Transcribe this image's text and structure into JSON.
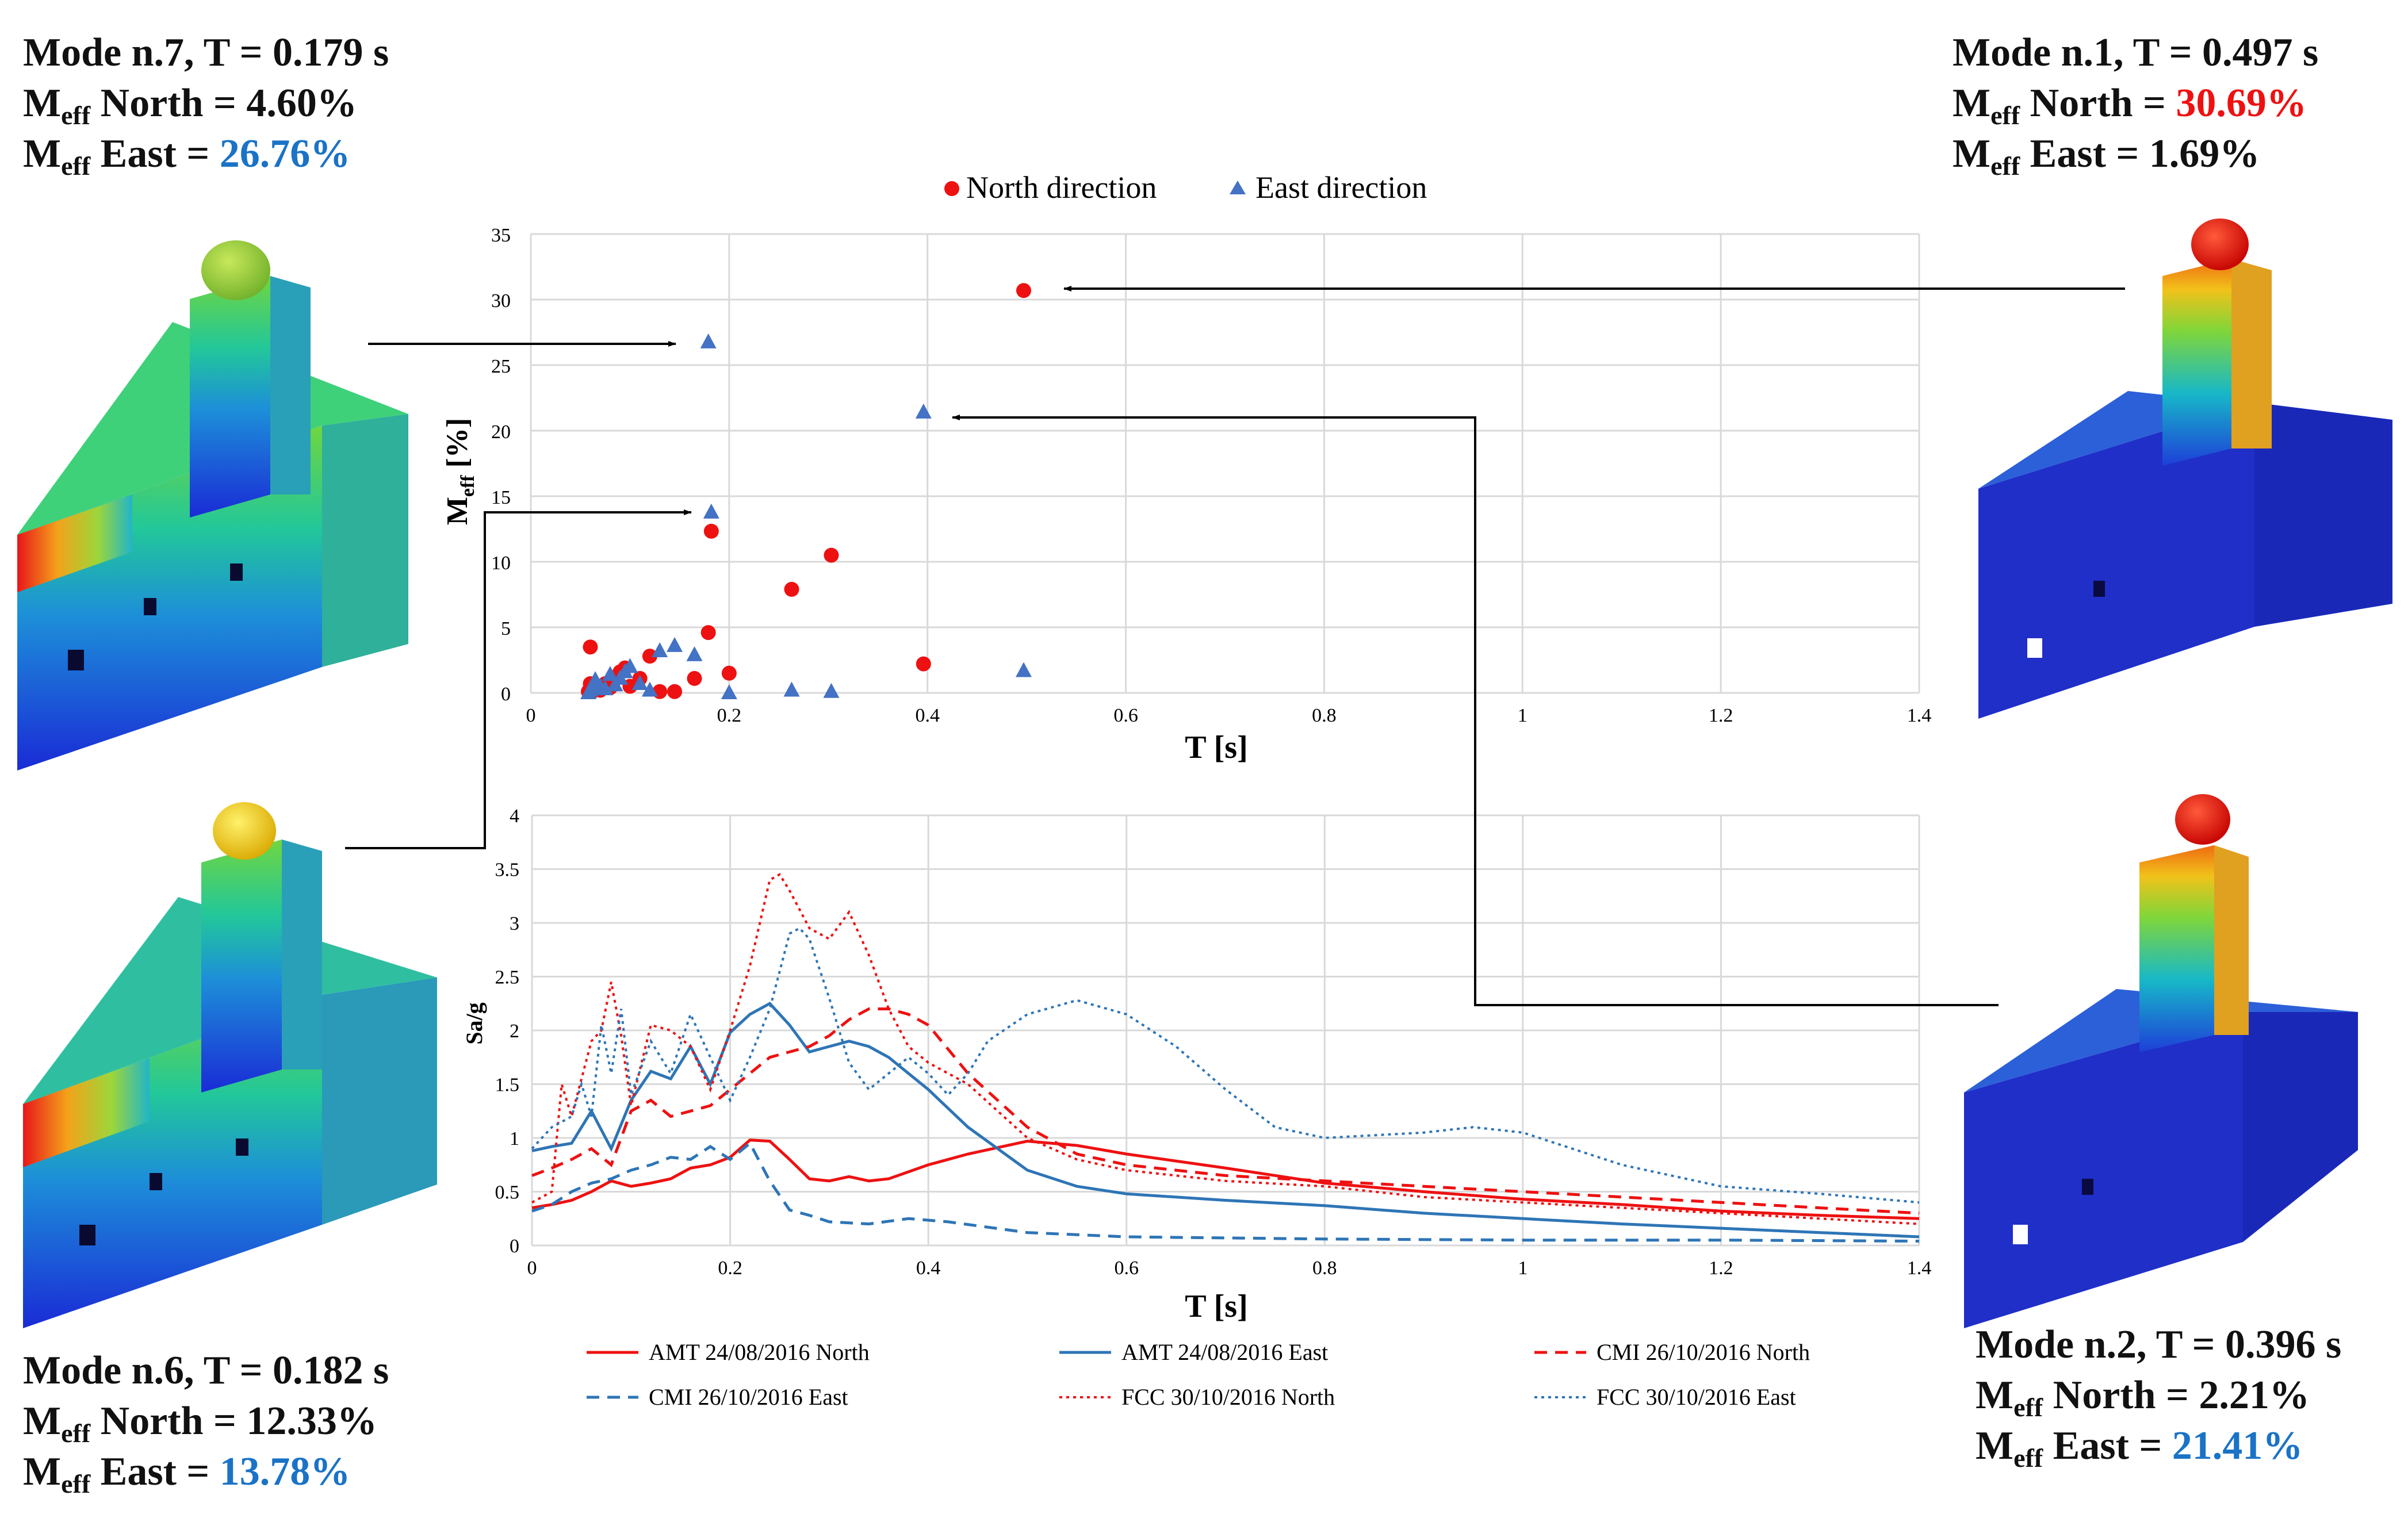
{
  "colors": {
    "north": "#ee1111",
    "east": "#4472c4",
    "east_line": "#2e75b6",
    "highlight_blue": "#1a73c6",
    "grid": "#d9d9d9",
    "arrow": "#000000"
  },
  "modes": [
    {
      "id": "mode7",
      "title": "Mode n.7, T = 0.179 s",
      "meff_label": "M",
      "eff_sub": "eff",
      "north_label": "North = ",
      "north_value": "4.60%",
      "north_color": "default",
      "east_label": "East = ",
      "east_value": "26.76%",
      "east_color": "blue"
    },
    {
      "id": "mode1",
      "title": "Mode n.1, T = 0.497 s",
      "meff_label": "M",
      "eff_sub": "eff",
      "north_label": "North = ",
      "north_value": "30.69%",
      "north_color": "red",
      "east_label": "East = ",
      "east_value": "1.69%",
      "east_color": "default"
    },
    {
      "id": "mode6",
      "title": "Mode n.6, T = 0.182 s",
      "meff_label": "M",
      "eff_sub": "eff",
      "north_label": "North = ",
      "north_value": "12.33%",
      "north_color": "default",
      "east_label": "East = ",
      "east_value": "13.78%",
      "east_color": "blue"
    },
    {
      "id": "mode2",
      "title": "Mode n.2, T = 0.396 s",
      "meff_label": "M",
      "eff_sub": "eff",
      "north_label": "North = ",
      "north_value": "2.21%",
      "north_color": "default",
      "east_label": "East = ",
      "east_value": "21.41%",
      "east_color": "blue"
    }
  ],
  "chart_data": [
    {
      "type": "scatter",
      "title": "",
      "xlabel": "T [s]",
      "ylabel": "M",
      "ylabel_sub": "eff",
      "ylabel_unit": " [%]",
      "xlim": [
        0,
        1.4
      ],
      "ylim": [
        0,
        35
      ],
      "xticks": [
        0,
        0.2,
        0.4,
        0.6,
        0.8,
        1,
        1.2,
        1.4
      ],
      "xtick_labels": [
        "0",
        "0.2",
        "0.4",
        "0.6",
        "0.8",
        "1",
        "1.2",
        "1.4"
      ],
      "yticks": [
        0,
        5,
        10,
        15,
        20,
        25,
        30,
        35
      ],
      "ytick_labels": [
        "0",
        "5",
        "10",
        "15",
        "20",
        "25",
        "30",
        "35"
      ],
      "grid": true,
      "legend_position": "top",
      "series": [
        {
          "name": "North direction",
          "marker": "circle",
          "points": [
            [
              0.497,
              30.69
            ],
            [
              0.396,
              2.21
            ],
            [
              0.303,
              10.5
            ],
            [
              0.263,
              7.9
            ],
            [
              0.182,
              12.33
            ],
            [
              0.179,
              4.6
            ],
            [
              0.2,
              1.5
            ],
            [
              0.165,
              1.1
            ],
            [
              0.145,
              0.1
            ],
            [
              0.13,
              0.1
            ],
            [
              0.12,
              2.8
            ],
            [
              0.11,
              1.1
            ],
            [
              0.1,
              0.5
            ],
            [
              0.095,
              1.9
            ],
            [
              0.09,
              1.6
            ],
            [
              0.085,
              1.2
            ],
            [
              0.08,
              0.4
            ],
            [
              0.075,
              0.7
            ],
            [
              0.07,
              0.2
            ],
            [
              0.065,
              0.3
            ],
            [
              0.06,
              3.5
            ],
            [
              0.06,
              0.7
            ],
            [
              0.058,
              0.1
            ],
            [
              0.062,
              0.1
            ]
          ]
        },
        {
          "name": "East direction",
          "marker": "triangle",
          "points": [
            [
              0.179,
              26.76
            ],
            [
              0.396,
              21.41
            ],
            [
              0.182,
              13.78
            ],
            [
              0.497,
              1.69
            ],
            [
              0.303,
              0.1
            ],
            [
              0.263,
              0.2
            ],
            [
              0.2,
              0.0
            ],
            [
              0.165,
              2.9
            ],
            [
              0.145,
              3.6
            ],
            [
              0.13,
              3.2
            ],
            [
              0.12,
              0.2
            ],
            [
              0.11,
              0.7
            ],
            [
              0.1,
              2.0
            ],
            [
              0.095,
              1.6
            ],
            [
              0.09,
              1.1
            ],
            [
              0.085,
              0.6
            ],
            [
              0.08,
              1.4
            ],
            [
              0.075,
              0.3
            ],
            [
              0.07,
              0.5
            ],
            [
              0.065,
              1.0
            ],
            [
              0.06,
              0.2
            ],
            [
              0.058,
              0.0
            ],
            [
              0.062,
              0.4
            ]
          ]
        }
      ]
    },
    {
      "type": "line",
      "title": "",
      "xlabel": "T [s]",
      "ylabel": "Sa/g",
      "xlim": [
        0,
        1.4
      ],
      "ylim": [
        0,
        4
      ],
      "xticks": [
        0,
        0.2,
        0.4,
        0.6,
        0.8,
        1,
        1.2,
        1.4
      ],
      "xtick_labels": [
        "0",
        "0.2",
        "0.4",
        "0.6",
        "0.8",
        "1",
        "1.2",
        "1.4"
      ],
      "yticks": [
        0,
        0.5,
        1,
        1.5,
        2,
        2.5,
        3,
        3.5,
        4
      ],
      "ytick_labels": [
        "0",
        "0.5",
        "1",
        "1.5",
        "2",
        "2.5",
        "3",
        "3.5",
        "4"
      ],
      "grid": true,
      "legend_position": "bottom",
      "series": [
        {
          "name": "AMT 24/08/2016 North",
          "color": "north",
          "dash": "solid",
          "x": [
            0,
            0.02,
            0.04,
            0.06,
            0.08,
            0.1,
            0.12,
            0.14,
            0.16,
            0.18,
            0.2,
            0.22,
            0.24,
            0.26,
            0.28,
            0.3,
            0.32,
            0.34,
            0.36,
            0.4,
            0.44,
            0.5,
            0.55,
            0.6,
            0.7,
            0.8,
            0.9,
            1.0,
            1.1,
            1.2,
            1.3,
            1.4
          ],
          "y": [
            0.35,
            0.38,
            0.42,
            0.5,
            0.6,
            0.55,
            0.58,
            0.62,
            0.72,
            0.75,
            0.82,
            0.98,
            0.97,
            0.8,
            0.62,
            0.6,
            0.64,
            0.6,
            0.62,
            0.75,
            0.85,
            0.97,
            0.93,
            0.85,
            0.72,
            0.58,
            0.5,
            0.43,
            0.38,
            0.32,
            0.28,
            0.25
          ]
        },
        {
          "name": "AMT 24/08/2016 East",
          "color": "east_line",
          "dash": "solid",
          "x": [
            0,
            0.02,
            0.04,
            0.06,
            0.08,
            0.1,
            0.12,
            0.14,
            0.16,
            0.18,
            0.2,
            0.22,
            0.24,
            0.26,
            0.28,
            0.3,
            0.32,
            0.34,
            0.36,
            0.4,
            0.44,
            0.5,
            0.55,
            0.6,
            0.7,
            0.8,
            0.9,
            1.0,
            1.1,
            1.2,
            1.3,
            1.4
          ],
          "y": [
            0.88,
            0.92,
            0.95,
            1.25,
            0.9,
            1.35,
            1.62,
            1.55,
            1.85,
            1.5,
            1.98,
            2.15,
            2.25,
            2.05,
            1.8,
            1.85,
            1.9,
            1.85,
            1.75,
            1.45,
            1.1,
            0.7,
            0.55,
            0.48,
            0.42,
            0.37,
            0.3,
            0.25,
            0.2,
            0.16,
            0.12,
            0.08
          ]
        },
        {
          "name": "CMI 26/10/2016 North",
          "color": "north",
          "dash": "dashed",
          "x": [
            0,
            0.02,
            0.04,
            0.06,
            0.08,
            0.1,
            0.12,
            0.14,
            0.16,
            0.18,
            0.2,
            0.22,
            0.24,
            0.26,
            0.28,
            0.3,
            0.32,
            0.34,
            0.36,
            0.38,
            0.4,
            0.44,
            0.5,
            0.55,
            0.6,
            0.7,
            0.8,
            0.9,
            1.0,
            1.1,
            1.2,
            1.3,
            1.4
          ],
          "y": [
            0.65,
            0.72,
            0.8,
            0.9,
            0.75,
            1.25,
            1.35,
            1.2,
            1.25,
            1.3,
            1.45,
            1.6,
            1.75,
            1.8,
            1.85,
            1.95,
            2.1,
            2.2,
            2.2,
            2.15,
            2.05,
            1.6,
            1.1,
            0.85,
            0.75,
            0.65,
            0.6,
            0.55,
            0.5,
            0.45,
            0.4,
            0.35,
            0.3
          ]
        },
        {
          "name": "CMI 26/10/2016 East",
          "color": "east_line",
          "dash": "dashed",
          "x": [
            0,
            0.02,
            0.04,
            0.06,
            0.08,
            0.1,
            0.12,
            0.14,
            0.16,
            0.18,
            0.2,
            0.22,
            0.24,
            0.26,
            0.28,
            0.3,
            0.34,
            0.38,
            0.42,
            0.5,
            0.6,
            0.8,
            1.0,
            1.2,
            1.4
          ],
          "y": [
            0.32,
            0.38,
            0.5,
            0.58,
            0.62,
            0.7,
            0.75,
            0.82,
            0.8,
            0.92,
            0.8,
            0.95,
            0.6,
            0.33,
            0.28,
            0.22,
            0.2,
            0.25,
            0.22,
            0.12,
            0.08,
            0.06,
            0.05,
            0.05,
            0.04
          ]
        },
        {
          "name": "FCC 30/10/2016 North",
          "color": "north",
          "dash": "dotted",
          "x": [
            0,
            0.02,
            0.03,
            0.04,
            0.05,
            0.06,
            0.07,
            0.08,
            0.09,
            0.1,
            0.12,
            0.14,
            0.16,
            0.18,
            0.2,
            0.22,
            0.24,
            0.25,
            0.26,
            0.28,
            0.3,
            0.32,
            0.34,
            0.36,
            0.38,
            0.4,
            0.44,
            0.5,
            0.55,
            0.6,
            0.7,
            0.8,
            0.9,
            1.0,
            1.1,
            1.2,
            1.3,
            1.4
          ],
          "y": [
            0.4,
            0.5,
            1.5,
            1.2,
            1.55,
            1.9,
            2.0,
            2.45,
            1.95,
            1.3,
            2.05,
            2.0,
            1.85,
            1.45,
            2.0,
            2.6,
            3.4,
            3.45,
            3.3,
            2.95,
            2.85,
            3.1,
            2.7,
            2.2,
            1.85,
            1.7,
            1.5,
            1.0,
            0.8,
            0.7,
            0.6,
            0.55,
            0.45,
            0.4,
            0.35,
            0.3,
            0.25,
            0.2
          ]
        },
        {
          "name": "FCC 30/10/2016 East",
          "color": "east_line",
          "dash": "dotted",
          "x": [
            0,
            0.02,
            0.04,
            0.05,
            0.06,
            0.07,
            0.08,
            0.09,
            0.1,
            0.12,
            0.14,
            0.16,
            0.18,
            0.2,
            0.22,
            0.24,
            0.26,
            0.27,
            0.28,
            0.3,
            0.32,
            0.34,
            0.36,
            0.38,
            0.4,
            0.42,
            0.44,
            0.46,
            0.5,
            0.55,
            0.6,
            0.65,
            0.7,
            0.75,
            0.8,
            0.9,
            0.95,
            1.0,
            1.1,
            1.2,
            1.3,
            1.4
          ],
          "y": [
            0.9,
            1.1,
            1.2,
            1.5,
            1.2,
            2.05,
            1.6,
            2.2,
            1.4,
            1.9,
            1.6,
            2.15,
            1.75,
            1.35,
            1.75,
            2.2,
            2.9,
            2.95,
            2.85,
            2.3,
            1.7,
            1.45,
            1.6,
            1.75,
            1.6,
            1.4,
            1.6,
            1.9,
            2.15,
            2.28,
            2.15,
            1.85,
            1.45,
            1.1,
            1.0,
            1.05,
            1.1,
            1.05,
            0.75,
            0.55,
            0.48,
            0.4
          ]
        }
      ]
    }
  ]
}
